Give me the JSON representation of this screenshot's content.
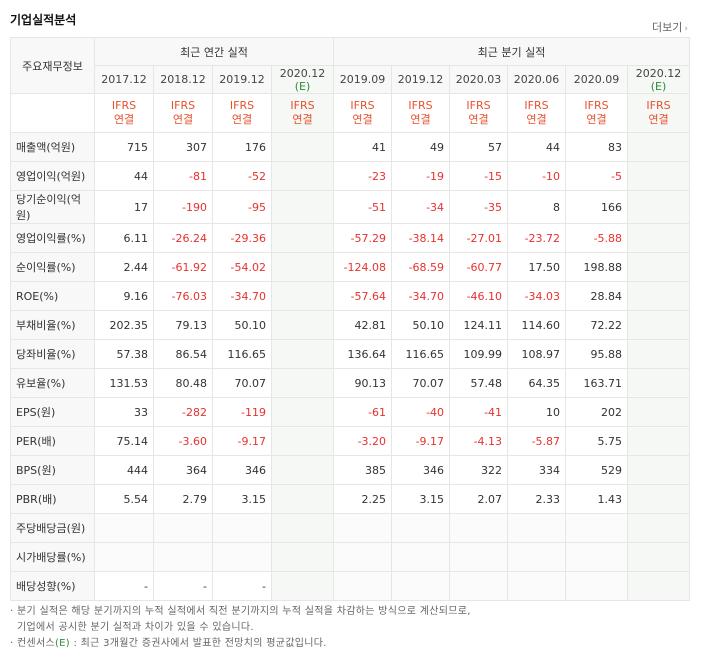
{
  "header": {
    "title": "기업실적분석",
    "more_label": "더보기",
    "more_icon": "chevron-right"
  },
  "groups": {
    "row_header": "주요재무정보",
    "annual": "최근 연간 실적",
    "quarterly": "최근 분기 실적"
  },
  "periods": [
    {
      "label": "2017.12"
    },
    {
      "label": "2018.12"
    },
    {
      "label": "2019.12"
    },
    {
      "label": "2020.12",
      "est": "(E)"
    },
    {
      "label": "2019.09"
    },
    {
      "label": "2019.12"
    },
    {
      "label": "2020.03"
    },
    {
      "label": "2020.06"
    },
    {
      "label": "2020.09"
    },
    {
      "label": "2020.12",
      "est": "(E)"
    }
  ],
  "ifrs": {
    "line1": "IFRS",
    "line2": "연결"
  },
  "rows": [
    {
      "label": "매출액(억원)",
      "values": [
        "715",
        "307",
        "176",
        "",
        "41",
        "49",
        "57",
        "44",
        "83",
        ""
      ]
    },
    {
      "label": "영업이익(억원)",
      "values": [
        "44",
        "-81",
        "-52",
        "",
        "-23",
        "-19",
        "-15",
        "-10",
        "-5",
        ""
      ]
    },
    {
      "label": "당기순이익(억원)",
      "values": [
        "17",
        "-190",
        "-95",
        "",
        "-51",
        "-34",
        "-35",
        "8",
        "166",
        ""
      ]
    },
    {
      "label": "영업이익률(%)",
      "values": [
        "6.11",
        "-26.24",
        "-29.36",
        "",
        "-57.29",
        "-38.14",
        "-27.01",
        "-23.72",
        "-5.88",
        ""
      ]
    },
    {
      "label": "순이익률(%)",
      "values": [
        "2.44",
        "-61.92",
        "-54.02",
        "",
        "-124.08",
        "-68.59",
        "-60.77",
        "17.50",
        "198.88",
        ""
      ]
    },
    {
      "label": "ROE(%)",
      "values": [
        "9.16",
        "-76.03",
        "-34.70",
        "",
        "-57.64",
        "-34.70",
        "-46.10",
        "-34.03",
        "28.84",
        ""
      ]
    },
    {
      "label": "부채비율(%)",
      "values": [
        "202.35",
        "79.13",
        "50.10",
        "",
        "42.81",
        "50.10",
        "124.11",
        "114.60",
        "72.22",
        ""
      ]
    },
    {
      "label": "당좌비율(%)",
      "values": [
        "57.38",
        "86.54",
        "116.65",
        "",
        "136.64",
        "116.65",
        "109.99",
        "108.97",
        "95.88",
        ""
      ]
    },
    {
      "label": "유보율(%)",
      "values": [
        "131.53",
        "80.48",
        "70.07",
        "",
        "90.13",
        "70.07",
        "57.48",
        "64.35",
        "163.71",
        ""
      ]
    },
    {
      "label": "EPS(원)",
      "values": [
        "33",
        "-282",
        "-119",
        "",
        "-61",
        "-40",
        "-41",
        "10",
        "202",
        ""
      ]
    },
    {
      "label": "PER(배)",
      "values": [
        "75.14",
        "-3.60",
        "-9.17",
        "",
        "-3.20",
        "-9.17",
        "-4.13",
        "-5.87",
        "5.75",
        ""
      ]
    },
    {
      "label": "BPS(원)",
      "values": [
        "444",
        "364",
        "346",
        "",
        "385",
        "346",
        "322",
        "334",
        "529",
        ""
      ]
    },
    {
      "label": "PBR(배)",
      "values": [
        "5.54",
        "2.79",
        "3.15",
        "",
        "2.25",
        "3.15",
        "2.07",
        "2.33",
        "1.43",
        ""
      ]
    },
    {
      "label": "주당배당금(원)",
      "values": [
        "",
        "",
        "",
        "",
        "",
        "",
        "",
        "",
        "",
        ""
      ]
    },
    {
      "label": "시가배당률(%)",
      "values": [
        "",
        "",
        "",
        "",
        "",
        "",
        "",
        "",
        "",
        ""
      ]
    },
    {
      "label": "배당성향(%)",
      "values": [
        "-",
        "-",
        "-",
        "",
        "",
        "",
        "",
        "",
        "",
        ""
      ]
    }
  ],
  "notes": {
    "line1": "분기 실적은 해당 분기까지의 누적 실적에서 직전 분기까지의 누적 실적을 차감하는 방식으로 계산되므로,",
    "line2": "기업에서 공시한 분기 실적과 차이가 있을 수 있습니다.",
    "line3_prefix": "컨센서스",
    "line3_e": "(E)",
    "line3_suffix": ": 최근 3개월간 증권사에서 발표한 전망치의 평균값입니다."
  },
  "colors": {
    "negative": "#e8312e",
    "ifrs": "#e8502b",
    "estimate": "#2f8a3a"
  }
}
